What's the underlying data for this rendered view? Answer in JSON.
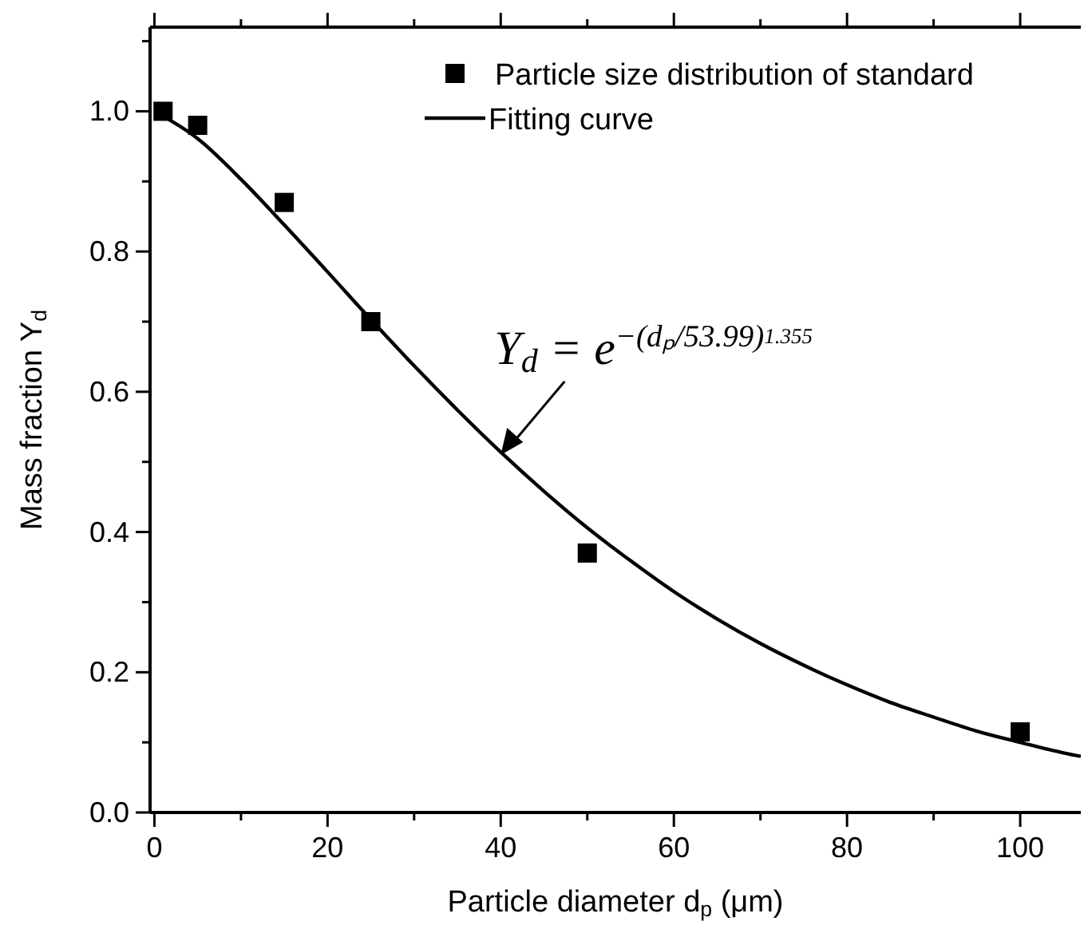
{
  "chart_data": {
    "type": "scatter",
    "xlabel": "Particle diameter d$_{p}$ (μm)",
    "ylabel": "Mass fraction  Y$_{d}$",
    "xlim": [
      -0.5,
      107
    ],
    "ylim": [
      0,
      1.12
    ],
    "xticks": [
      0,
      {
        "value": 10,
        "label": null
      },
      20,
      {
        "value": 30,
        "label": null
      },
      40,
      {
        "value": 50,
        "label": null
      },
      60,
      {
        "value": 70,
        "label": null
      },
      80,
      {
        "value": 90,
        "label": null
      },
      100
    ],
    "yticks": [
      {
        "value": 0,
        "label": "0.0"
      },
      {
        "value": 0.1,
        "label": null
      },
      {
        "value": 0.2,
        "label": "0.2"
      },
      {
        "value": 0.3,
        "label": null
      },
      {
        "value": 0.4,
        "label": "0.4"
      },
      {
        "value": 0.5,
        "label": null
      },
      {
        "value": 0.6,
        "label": "0.6"
      },
      {
        "value": 0.7,
        "label": null
      },
      {
        "value": 0.8,
        "label": "0.8"
      },
      {
        "value": 0.9,
        "label": null
      },
      {
        "value": 1.0,
        "label": "1.0"
      },
      {
        "value": 1.1,
        "label": null
      }
    ],
    "grid": false,
    "legend": "top right",
    "series": [
      {
        "name": "Particle size distribution of standard",
        "marker": "square",
        "color": "#000000",
        "x": [
          1,
          5,
          15,
          25,
          50,
          100
        ],
        "values": [
          1.0,
          0.98,
          0.87,
          0.7,
          0.37,
          0.115
        ]
      },
      {
        "name": "Fitting curve",
        "type": "line",
        "marker": "none",
        "line_style": "solid",
        "color": "#000000",
        "x": [
          0,
          5,
          10,
          15,
          20,
          25,
          30,
          35,
          40,
          45,
          50,
          55,
          60,
          65,
          70,
          75,
          80,
          85,
          90,
          95,
          100,
          105,
          107
        ],
        "values": [
          1,
          0.961,
          0.903,
          0.838,
          0.771,
          0.703,
          0.637,
          0.574,
          0.514,
          0.458,
          0.406,
          0.359,
          0.315,
          0.276,
          0.241,
          0.21,
          0.182,
          0.157,
          0.136,
          0.116,
          0.1,
          0.085,
          0.08
        ]
      }
    ],
    "annotations": [
      {
        "text": "Y$_{d}$ = e$^{−(dₚ/53.99)}$$^{1.355}$",
        "x": 40,
        "y": 0.51
      }
    ]
  }
}
